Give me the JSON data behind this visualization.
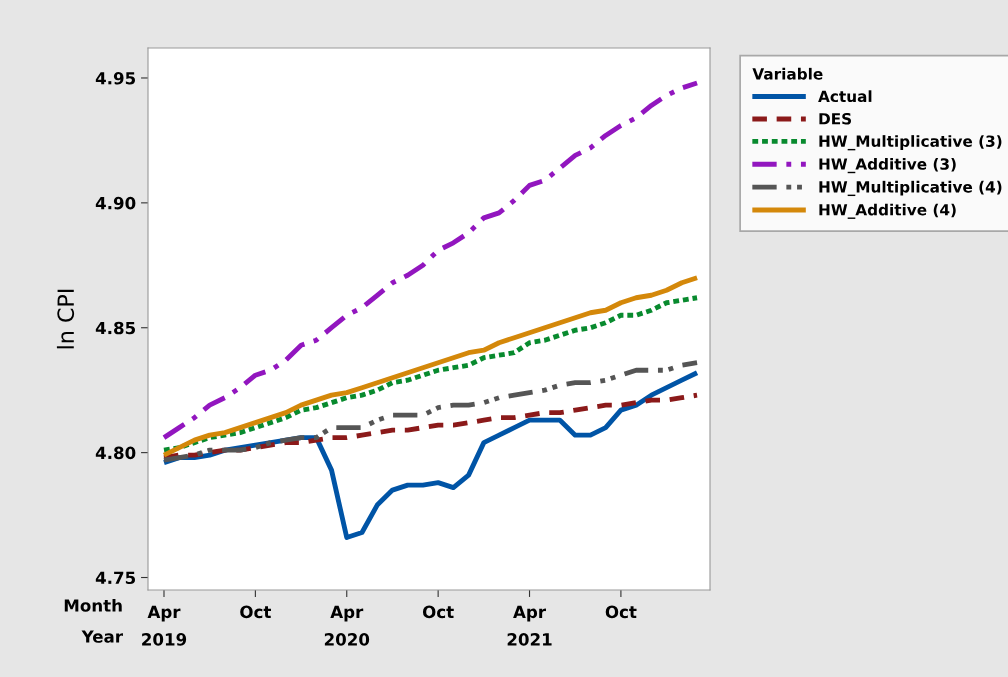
{
  "chart_data": {
    "type": "line",
    "ylabel": "ln CPI",
    "legend_title": "Variable",
    "legend": "right",
    "categories": [
      "Apr\n2019",
      null,
      null,
      null,
      null,
      null,
      "Oct",
      null,
      null,
      null,
      null,
      null,
      "Apr\n2020",
      null,
      null,
      null,
      null,
      null,
      "Oct",
      null,
      null,
      null,
      null,
      null,
      "Apr\n2021",
      null,
      null,
      null,
      null,
      null,
      "Oct",
      null,
      null,
      null,
      null,
      null
    ],
    "ylim": [
      4.745,
      4.962
    ],
    "yticks": [
      4.75,
      {
        "value": 4.8,
        "label": "4.80"
      },
      4.85,
      {
        "value": 4.9,
        "label": "4.90"
      },
      4.95
    ],
    "grid": false,
    "annotations": [
      "Month",
      "Year"
    ],
    "series": [
      {
        "name": "Actual",
        "color": "#0054a6",
        "line_style": "solid",
        "values": [
          4.796,
          4.798,
          4.798,
          4.799,
          4.801,
          4.802,
          4.803,
          4.804,
          4.805,
          4.806,
          4.806,
          4.793,
          4.766,
          4.768,
          4.779,
          4.785,
          4.787,
          4.787,
          4.788,
          4.786,
          4.791,
          4.804,
          4.807,
          4.81,
          4.813,
          4.813,
          4.813,
          4.807,
          4.807,
          4.81,
          4.817,
          4.819,
          4.823,
          4.826,
          4.829,
          4.832
        ]
      },
      {
        "name": "DES",
        "color": "#8b1a1a",
        "line_style": "dashed",
        "values": [
          4.798,
          4.799,
          4.799,
          4.8,
          4.801,
          4.801,
          4.802,
          4.803,
          4.804,
          4.804,
          4.805,
          4.806,
          4.806,
          4.807,
          4.808,
          4.809,
          4.809,
          4.81,
          4.811,
          4.811,
          4.812,
          4.813,
          4.814,
          4.814,
          4.815,
          4.816,
          4.816,
          4.817,
          4.818,
          4.819,
          4.819,
          4.82,
          4.821,
          4.821,
          4.822,
          4.823
        ]
      },
      {
        "name": "HW_Multiplicative (3)",
        "color": "#088a2e",
        "line_style": "dotted",
        "values": [
          4.801,
          4.802,
          4.804,
          4.806,
          4.807,
          4.808,
          4.81,
          4.812,
          4.814,
          4.817,
          4.818,
          4.82,
          4.822,
          4.823,
          4.825,
          4.828,
          4.829,
          4.831,
          4.833,
          4.834,
          4.835,
          4.838,
          4.839,
          4.84,
          4.844,
          4.845,
          4.847,
          4.849,
          4.85,
          4.852,
          4.855,
          4.855,
          4.857,
          4.86,
          4.861,
          4.862
        ]
      },
      {
        "name": "HW_Additive (3)",
        "color": "#9216bf",
        "line_style": "dashdot",
        "values": [
          4.806,
          4.81,
          4.814,
          4.819,
          4.822,
          4.826,
          4.831,
          4.833,
          4.837,
          4.843,
          4.845,
          4.85,
          4.855,
          4.858,
          4.863,
          4.868,
          4.871,
          4.875,
          4.881,
          4.884,
          4.888,
          4.894,
          4.896,
          4.901,
          4.907,
          4.909,
          4.914,
          4.919,
          4.922,
          4.927,
          4.931,
          4.934,
          4.939,
          4.943,
          4.946,
          4.948
        ]
      },
      {
        "name": "HW_Multiplicative (4)",
        "color": "#555555",
        "line_style": "dashdotdot",
        "values": [
          4.797,
          4.798,
          4.799,
          4.801,
          4.801,
          4.801,
          4.802,
          4.804,
          4.805,
          4.806,
          4.806,
          4.81,
          4.81,
          4.81,
          4.813,
          4.815,
          4.815,
          4.815,
          4.818,
          4.819,
          4.819,
          4.82,
          4.822,
          4.823,
          4.824,
          4.825,
          4.827,
          4.828,
          4.828,
          4.829,
          4.831,
          4.833,
          4.833,
          4.833,
          4.835,
          4.836
        ]
      },
      {
        "name": "HW_Additive (4)",
        "color": "#d4880a",
        "line_style": "solid",
        "values": [
          4.799,
          4.802,
          4.805,
          4.807,
          4.808,
          4.81,
          4.812,
          4.814,
          4.816,
          4.819,
          4.821,
          4.823,
          4.824,
          4.826,
          4.828,
          4.83,
          4.832,
          4.834,
          4.836,
          4.838,
          4.84,
          4.841,
          4.844,
          4.846,
          4.848,
          4.85,
          4.852,
          4.854,
          4.856,
          4.857,
          4.86,
          4.862,
          4.863,
          4.865,
          4.868,
          4.87
        ]
      }
    ]
  }
}
